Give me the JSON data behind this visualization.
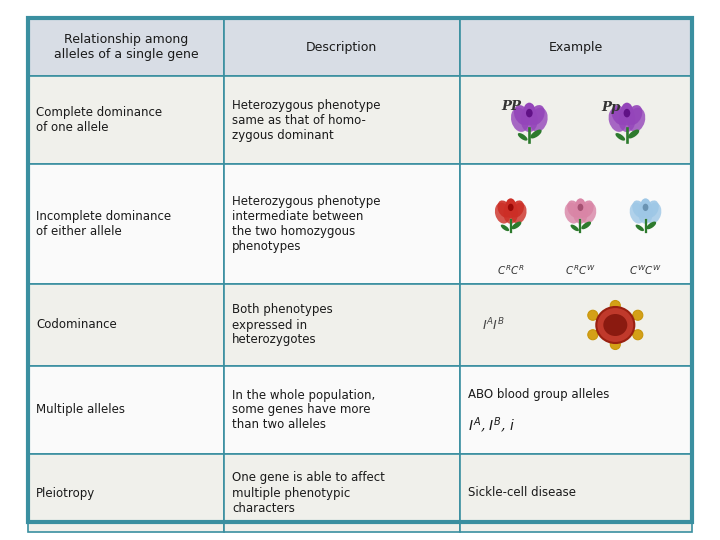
{
  "title_row": [
    "Relationship among\nalleles of a single gene",
    "Description",
    "Example"
  ],
  "rows": [
    {
      "col1": "Complete dominance\nof one allele",
      "col2": "Heterozygous phenotype\nsame as that of homo-\nzygous dominant",
      "col3_text": "",
      "col3_type": "purple_flowers"
    },
    {
      "col1": "Incomplete dominance\nof either allele",
      "col2": "Heterozygous phenotype\nintermediate between\nthe two homozygous\nphenotypes",
      "col3_text": "",
      "col3_type": "three_flowers"
    },
    {
      "col1": "Codominance",
      "col2": "Both phenotypes\nexpressed in\nheterozygotes",
      "col3_text": "",
      "col3_type": "blood_cell"
    },
    {
      "col1": "Multiple alleles",
      "col2": "In the whole population,\nsome genes have more\nthan two alleles",
      "col3_text": "ABO blood group alleles",
      "col3_type": "text_alleles"
    },
    {
      "col1": "Pleiotropy",
      "col2": "One gene is able to affect\nmultiple phenotypic\ncharacters",
      "col3_text": "Sickle-cell disease",
      "col3_type": "text_only"
    }
  ],
  "header_bg": "#d8dde5",
  "row_bg_even": "#f0f0eb",
  "row_bg_odd": "#fafafa",
  "border_color": "#3a8fa0",
  "text_color": "#1a1a1a",
  "font_size": 8.5,
  "header_font_size": 9,
  "background_color": "#ffffff"
}
